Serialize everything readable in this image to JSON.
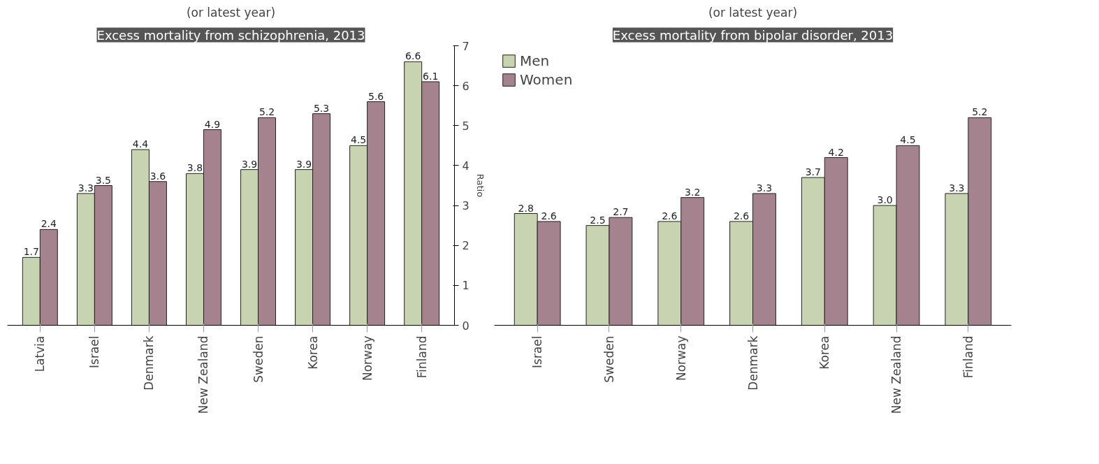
{
  "chart_data": [
    {
      "type": "bar",
      "title": "Excess mortality from schizophrenia, 2013",
      "subtitle": "(or latest year)",
      "ylabel": "Ratio",
      "categories": [
        "Latvia",
        "Israel",
        "Denmark",
        "New Zealand",
        "Sweden",
        "Korea",
        "Norway",
        "Finland"
      ],
      "series": [
        {
          "color": "#c8d3b1",
          "values": [
            1.7,
            3.3,
            4.4,
            3.8,
            3.9,
            3.9,
            4.5,
            6.6
          ],
          "value_labels": [
            "1.7",
            "3.3",
            "4.4",
            "3.8",
            "3.9",
            "3.9",
            "4.5",
            "6.6"
          ]
        },
        {
          "color": "#a4838f",
          "values": [
            2.4,
            3.5,
            3.6,
            4.9,
            5.2,
            5.3,
            5.6,
            6.1
          ],
          "value_labels": [
            "2.4",
            "3.5",
            "3.6",
            "4.9",
            "5.2",
            "5.3",
            "5.6",
            "6.1"
          ]
        }
      ],
      "ylim": [
        0,
        7
      ],
      "yticks": [
        0,
        1,
        2,
        3,
        4,
        5,
        6,
        7
      ],
      "grid": false
    },
    {
      "type": "bar",
      "title": "Excess mortality from bipolar disorder, 2013",
      "subtitle": "(or latest year)",
      "categories": [
        "Israel",
        "Sweden",
        "Norway",
        "Denmark",
        "Korea",
        "New Zealand",
        "Finland"
      ],
      "series": [
        {
          "name": "Men",
          "color": "#c8d3b1",
          "values": [
            2.8,
            2.5,
            2.6,
            2.6,
            3.7,
            3.0,
            3.3
          ],
          "value_labels": [
            "2.8",
            "2.5",
            "2.6",
            "2.6",
            "3.7",
            "3.0",
            "3.3"
          ]
        },
        {
          "name": "Women",
          "color": "#a4838f",
          "values": [
            2.6,
            2.7,
            3.2,
            3.3,
            4.2,
            4.5,
            5.2
          ],
          "value_labels": [
            "2.6",
            "2.7",
            "3.2",
            "3.3",
            "4.2",
            "4.5",
            "5.2"
          ]
        }
      ],
      "ylim": [
        0,
        7
      ],
      "yticks": [
        0,
        1,
        2,
        3,
        4,
        5,
        6,
        7
      ],
      "grid": false,
      "tick_labels": "x",
      "legend": "top left"
    }
  ]
}
